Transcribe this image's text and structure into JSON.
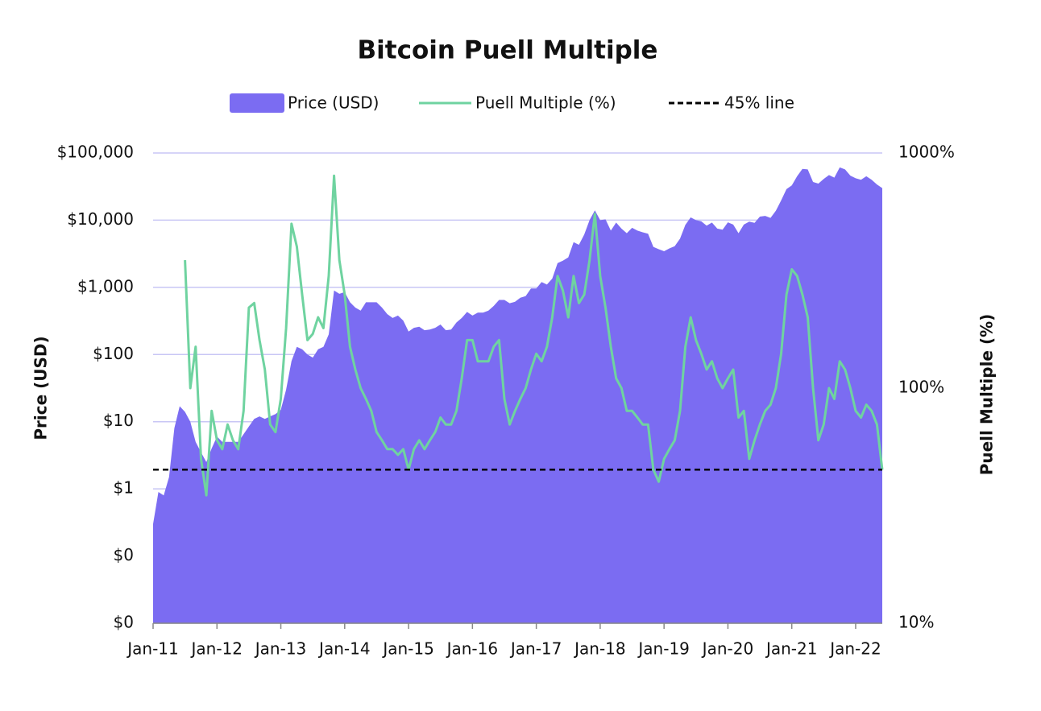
{
  "chart_data": {
    "type": "area-line",
    "title": "Bitcoin Puell Multiple",
    "x": [
      "2011-01",
      "2011-02",
      "2011-03",
      "2011-04",
      "2011-05",
      "2011-06",
      "2011-07",
      "2011-08",
      "2011-09",
      "2011-10",
      "2011-11",
      "2011-12",
      "2012-01",
      "2012-02",
      "2012-03",
      "2012-04",
      "2012-05",
      "2012-06",
      "2012-07",
      "2012-08",
      "2012-09",
      "2012-10",
      "2012-11",
      "2012-12",
      "2013-01",
      "2013-02",
      "2013-03",
      "2013-04",
      "2013-05",
      "2013-06",
      "2013-07",
      "2013-08",
      "2013-09",
      "2013-10",
      "2013-11",
      "2013-12",
      "2014-01",
      "2014-02",
      "2014-03",
      "2014-04",
      "2014-05",
      "2014-06",
      "2014-07",
      "2014-08",
      "2014-09",
      "2014-10",
      "2014-11",
      "2014-12",
      "2015-01",
      "2015-02",
      "2015-03",
      "2015-04",
      "2015-05",
      "2015-06",
      "2015-07",
      "2015-08",
      "2015-09",
      "2015-10",
      "2015-11",
      "2015-12",
      "2016-01",
      "2016-02",
      "2016-03",
      "2016-04",
      "2016-05",
      "2016-06",
      "2016-07",
      "2016-08",
      "2016-09",
      "2016-10",
      "2016-11",
      "2016-12",
      "2017-01",
      "2017-02",
      "2017-03",
      "2017-04",
      "2017-05",
      "2017-06",
      "2017-07",
      "2017-08",
      "2017-09",
      "2017-10",
      "2017-11",
      "2017-12",
      "2018-01",
      "2018-02",
      "2018-03",
      "2018-04",
      "2018-05",
      "2018-06",
      "2018-07",
      "2018-08",
      "2018-09",
      "2018-10",
      "2018-11",
      "2018-12",
      "2019-01",
      "2019-02",
      "2019-03",
      "2019-04",
      "2019-05",
      "2019-06",
      "2019-07",
      "2019-08",
      "2019-09",
      "2019-10",
      "2019-11",
      "2019-12",
      "2020-01",
      "2020-02",
      "2020-03",
      "2020-04",
      "2020-05",
      "2020-06",
      "2020-07",
      "2020-08",
      "2020-09",
      "2020-10",
      "2020-11",
      "2020-12",
      "2021-01",
      "2021-02",
      "2021-03",
      "2021-04",
      "2021-05",
      "2021-06",
      "2021-07",
      "2021-08",
      "2021-09",
      "2021-10",
      "2021-11",
      "2021-12",
      "2022-01",
      "2022-02",
      "2022-03",
      "2022-04",
      "2022-05",
      "2022-06"
    ],
    "series": [
      {
        "name": "Price (USD)",
        "color": "#7b6cf2",
        "values": [
          0.3,
          0.9,
          0.8,
          1.5,
          8,
          17,
          14,
          10,
          5,
          3.5,
          2.5,
          4,
          6,
          5,
          5,
          5,
          5,
          6.5,
          8.5,
          11,
          12,
          11,
          12,
          13,
          15,
          30,
          80,
          130,
          120,
          100,
          90,
          120,
          130,
          200,
          900,
          800,
          850,
          600,
          500,
          450,
          600,
          600,
          600,
          500,
          400,
          350,
          380,
          320,
          220,
          250,
          260,
          230,
          235,
          250,
          280,
          230,
          235,
          300,
          350,
          430,
          380,
          420,
          420,
          450,
          530,
          650,
          650,
          580,
          610,
          700,
          740,
          960,
          960,
          1200,
          1100,
          1350,
          2300,
          2500,
          2800,
          4700,
          4300,
          6100,
          10000,
          14000,
          10000,
          10300,
          7000,
          9200,
          7500,
          6400,
          7700,
          7000,
          6600,
          6300,
          4000,
          3700,
          3450,
          3800,
          4100,
          5300,
          8500,
          11000,
          10000,
          9600,
          8300,
          9200,
          7500,
          7200,
          9300,
          8600,
          6400,
          8600,
          9500,
          9100,
          11300,
          11600,
          10800,
          13800,
          19700,
          29000,
          33000,
          45000,
          58000,
          57000,
          37000,
          35000,
          41000,
          47000,
          43000,
          61000,
          57000,
          46000,
          42000,
          40000,
          45000,
          40000,
          34000,
          30000
        ]
      },
      {
        "name": "Puell Multiple (%)",
        "color": "#6fd3a0",
        "axis": "y2",
        "values": [
          null,
          null,
          null,
          null,
          null,
          null,
          350,
          100,
          150,
          50,
          35,
          80,
          60,
          55,
          70,
          60,
          55,
          80,
          220,
          230,
          160,
          120,
          70,
          65,
          90,
          180,
          500,
          400,
          250,
          160,
          170,
          200,
          180,
          300,
          800,
          350,
          250,
          150,
          120,
          100,
          90,
          80,
          65,
          60,
          55,
          55,
          52,
          55,
          45,
          55,
          60,
          55,
          60,
          65,
          75,
          70,
          70,
          80,
          110,
          160,
          160,
          130,
          130,
          130,
          150,
          160,
          90,
          70,
          80,
          90,
          100,
          120,
          140,
          130,
          150,
          200,
          300,
          260,
          200,
          300,
          230,
          250,
          350,
          550,
          300,
          220,
          150,
          110,
          100,
          80,
          80,
          75,
          70,
          70,
          45,
          40,
          50,
          55,
          60,
          80,
          150,
          200,
          160,
          140,
          120,
          130,
          110,
          100,
          110,
          120,
          75,
          80,
          50,
          60,
          70,
          80,
          85,
          100,
          140,
          250,
          320,
          300,
          250,
          200,
          100,
          60,
          70,
          100,
          90,
          130,
          120,
          100,
          80,
          75,
          85,
          80,
          70,
          45
        ]
      }
    ],
    "reference_line": {
      "name": "45% line",
      "value": 45,
      "axis": "y2",
      "color": "#000000"
    },
    "ylabel": "Price (USD)",
    "y2label": "Puell Multiple (%)",
    "log_scale": true,
    "grid": true,
    "legend": "top",
    "xlim": [
      "2011-01",
      "2022-06"
    ],
    "xticks": [
      {
        "value": "2011-01",
        "label": "Jan-11"
      },
      {
        "value": "2012-01",
        "label": "Jan-12"
      },
      {
        "value": "2013-01",
        "label": "Jan-13"
      },
      {
        "value": "2014-01",
        "label": "Jan-14"
      },
      {
        "value": "2015-01",
        "label": "Jan-15"
      },
      {
        "value": "2016-01",
        "label": "Jan-16"
      },
      {
        "value": "2017-01",
        "label": "Jan-17"
      },
      {
        "value": "2018-01",
        "label": "Jan-18"
      },
      {
        "value": "2019-01",
        "label": "Jan-19"
      },
      {
        "value": "2020-01",
        "label": "Jan-20"
      },
      {
        "value": "2021-01",
        "label": "Jan-21"
      },
      {
        "value": "2022-01",
        "label": "Jan-22"
      }
    ],
    "ylim": [
      0.01,
      100000
    ],
    "yticks": [
      {
        "value": 0.01,
        "label": "$0"
      },
      {
        "value": 0.1,
        "label": "$0"
      },
      {
        "value": 1,
        "label": "$1"
      },
      {
        "value": 10,
        "label": "$10"
      },
      {
        "value": 100,
        "label": "$100"
      },
      {
        "value": 1000,
        "label": "$1,000"
      },
      {
        "value": 10000,
        "label": "$10,000"
      },
      {
        "value": 100000,
        "label": "$100,000"
      }
    ],
    "y2lim": [
      10,
      1000
    ],
    "y2ticks": [
      {
        "value": 10,
        "label": "10%"
      },
      {
        "value": 100,
        "label": "100%"
      },
      {
        "value": 1000,
        "label": "1000%"
      }
    ]
  }
}
